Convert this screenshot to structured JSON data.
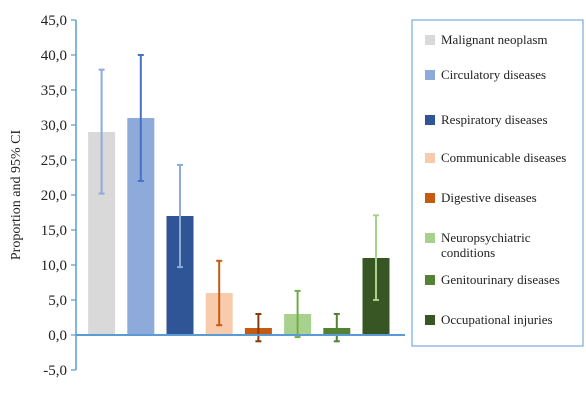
{
  "chart_data": {
    "type": "bar",
    "ylabel": "Proportion and 95% CI",
    "ylim": [
      -5,
      45
    ],
    "yticks": [
      "-5,0",
      "0,0",
      "5,0",
      "10,0",
      "15,0",
      "20,0",
      "25,0",
      "30,0",
      "35,0",
      "40,0",
      "45,0"
    ],
    "ytick_values": [
      -5,
      0,
      5,
      10,
      15,
      20,
      25,
      30,
      35,
      40,
      45
    ],
    "legend_position": "right",
    "grid": false,
    "categories": [
      "Malignant neoplasm",
      "Circulatory diseases",
      "Respiratory diseases",
      "Communicable diseases",
      "Digestive diseases",
      "Neuropsychiatric conditions",
      "Genitourinary diseases",
      "Occupational injuries"
    ],
    "values": [
      29.0,
      31.0,
      17.0,
      6.0,
      1.0,
      3.0,
      1.0,
      11.0
    ],
    "ci_low": [
      20.2,
      22.0,
      9.7,
      1.4,
      -0.9,
      -0.3,
      -0.9,
      5.0
    ],
    "ci_high": [
      37.9,
      40.0,
      24.3,
      10.6,
      3.0,
      6.3,
      3.0,
      17.1
    ],
    "colors": [
      "#d9d9d9",
      "#8eaadb",
      "#2f5597",
      "#f8cbad",
      "#c55a11",
      "#a9d18e",
      "#548235",
      "#375623"
    ],
    "error_colors": [
      "#8eaadb",
      "#4472c4",
      "#8eaadb",
      "#c55a11",
      "#843c0c",
      "#70ad47",
      "#548235",
      "#a9d18e"
    ],
    "axis_color": "#5b9bd5"
  }
}
